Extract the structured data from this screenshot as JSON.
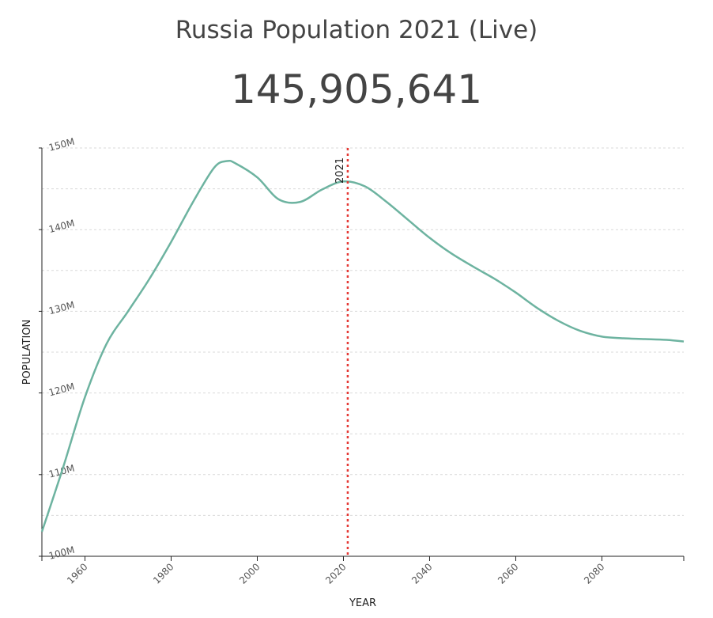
{
  "header": {
    "title": "Russia Population 2021 (Live)",
    "live_count": "145,905,641"
  },
  "chart_data": {
    "type": "line",
    "xlabel": "YEAR",
    "ylabel": "POPULATION",
    "xlim": [
      1950,
      2099
    ],
    "ylim": [
      100,
      150
    ],
    "y_unit": "M",
    "x_ticks": [
      1960,
      1980,
      2000,
      2020,
      2040,
      2060,
      2080
    ],
    "y_ticks": [
      100,
      110,
      120,
      130,
      140,
      150
    ],
    "grid": "horizontal-dashed",
    "line_color": "#6db3a0",
    "marker": {
      "x": 2021,
      "label": "2021",
      "color": "#e53935"
    },
    "series": [
      {
        "x": [
          1950,
          1955,
          1960,
          1965,
          1970,
          1975,
          1980,
          1985,
          1990,
          1993,
          1995,
          2000,
          2005,
          2010,
          2015,
          2020,
          2025,
          2030,
          2035,
          2040,
          2045,
          2050,
          2055,
          2060,
          2065,
          2070,
          2075,
          2080,
          2085,
          2090,
          2095,
          2099
        ],
        "values": [
          103.0,
          111.0,
          119.5,
          126.0,
          130.0,
          134.0,
          138.5,
          143.3,
          147.6,
          148.4,
          148.1,
          146.4,
          143.7,
          143.4,
          144.9,
          145.9,
          145.3,
          143.4,
          141.2,
          139.0,
          137.1,
          135.5,
          134.0,
          132.3,
          130.4,
          128.8,
          127.6,
          126.9,
          126.7,
          126.6,
          126.5,
          126.3
        ]
      }
    ]
  }
}
